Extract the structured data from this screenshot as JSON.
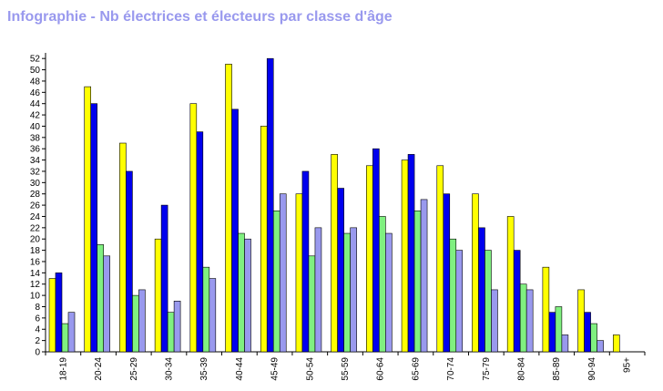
{
  "title": "Infographie - Nb électrices et électeurs par classe d'âge",
  "colors": {
    "title": "#9999ee",
    "axis": "#000000",
    "bar_outline": "#000000"
  },
  "chart_data": {
    "type": "bar",
    "title": "Infographie - Nb électrices et électeurs par classe d'âge",
    "xlabel": "",
    "ylabel": "",
    "ylim": [
      0,
      53
    ],
    "yticks": [
      0,
      2,
      4,
      6,
      8,
      10,
      12,
      14,
      16,
      18,
      20,
      22,
      24,
      26,
      28,
      30,
      32,
      34,
      36,
      38,
      40,
      42,
      44,
      46,
      48,
      50,
      52
    ],
    "grid": false,
    "legend": "none",
    "categories": [
      "18-19",
      "20-24",
      "25-29",
      "30-34",
      "35-39",
      "40-44",
      "45-49",
      "50-54",
      "55-59",
      "60-64",
      "65-69",
      "70-74",
      "75-79",
      "80-84",
      "85-89",
      "90-94",
      "95+"
    ],
    "series": [
      {
        "color": "#ffff00",
        "values": [
          13,
          47,
          37,
          20,
          44,
          51,
          40,
          28,
          35,
          33,
          34,
          33,
          28,
          24,
          15,
          11,
          3
        ]
      },
      {
        "color": "#0000ee",
        "values": [
          14,
          44,
          32,
          26,
          39,
          43,
          52,
          32,
          29,
          36,
          35,
          28,
          22,
          18,
          7,
          7,
          0
        ]
      },
      {
        "color": "#80f080",
        "values": [
          5,
          19,
          10,
          7,
          15,
          21,
          25,
          17,
          21,
          24,
          25,
          20,
          18,
          12,
          8,
          5,
          0
        ]
      },
      {
        "color": "#9999ee",
        "values": [
          7,
          17,
          11,
          9,
          13,
          20,
          28,
          22,
          22,
          21,
          27,
          18,
          11,
          11,
          3,
          2,
          0
        ]
      }
    ]
  }
}
